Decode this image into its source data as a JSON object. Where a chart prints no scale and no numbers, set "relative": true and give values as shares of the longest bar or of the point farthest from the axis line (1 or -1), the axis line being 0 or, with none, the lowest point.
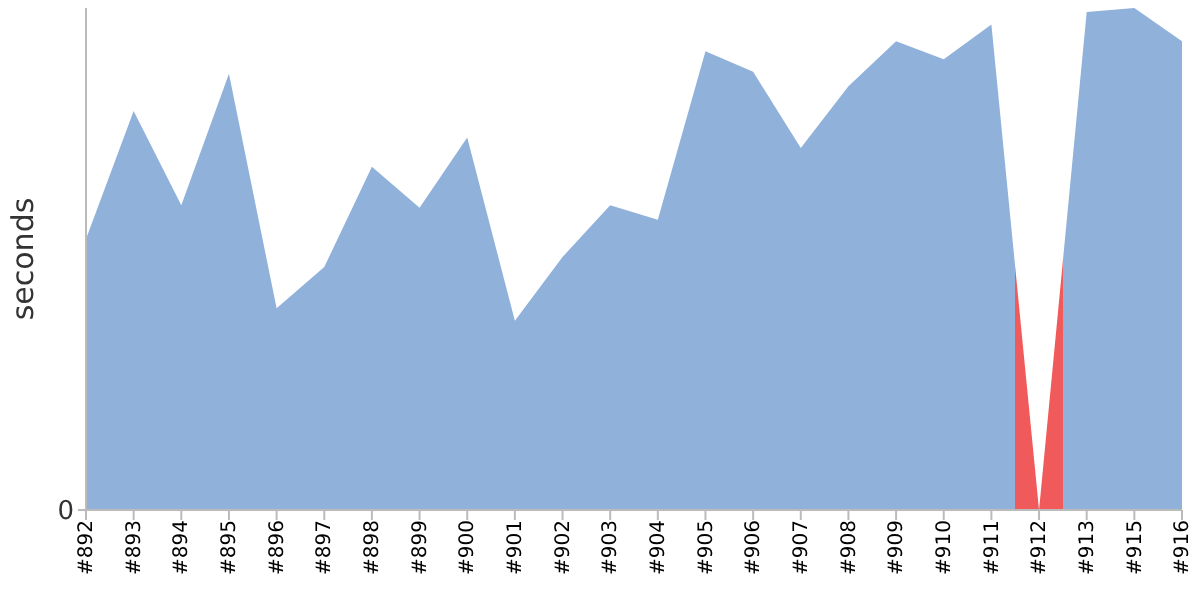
{
  "chart_data": {
    "type": "area",
    "relative": true,
    "ylabel": "seconds",
    "annotations": [
      "0"
    ],
    "categories": [
      "#892",
      "#893",
      "#894",
      "#895",
      "#896",
      "#897",
      "#898",
      "#899",
      "#900",
      "#901",
      "#902",
      "#903",
      "#904",
      "#905",
      "#906",
      "#907",
      "#908",
      "#909",
      "#910",
      "#911",
      "#912",
      "#913",
      "#915",
      "#916"
    ],
    "values": [
      0.54,
      0.795,
      0.607,
      0.869,
      0.402,
      0.484,
      0.684,
      0.602,
      0.742,
      0.377,
      0.504,
      0.607,
      0.578,
      0.914,
      0.873,
      0.721,
      0.844,
      0.934,
      0.898,
      0.967,
      0,
      0.992,
      1,
      0.934
    ],
    "colors": [
      "#8fb1da",
      "#8fb1da",
      "#8fb1da",
      "#8fb1da",
      "#8fb1da",
      "#8fb1da",
      "#8fb1da",
      "#8fb1da",
      "#8fb1da",
      "#8fb1da",
      "#8fb1da",
      "#8fb1da",
      "#8fb1da",
      "#8fb1da",
      "#8fb1da",
      "#8fb1da",
      "#8fb1da",
      "#8fb1da",
      "#8fb1da",
      "#8fb1da",
      "#f15a5a",
      "#8fb1da",
      "#8fb1da",
      "#8fb1da"
    ],
    "grid": false,
    "legend": false
  }
}
